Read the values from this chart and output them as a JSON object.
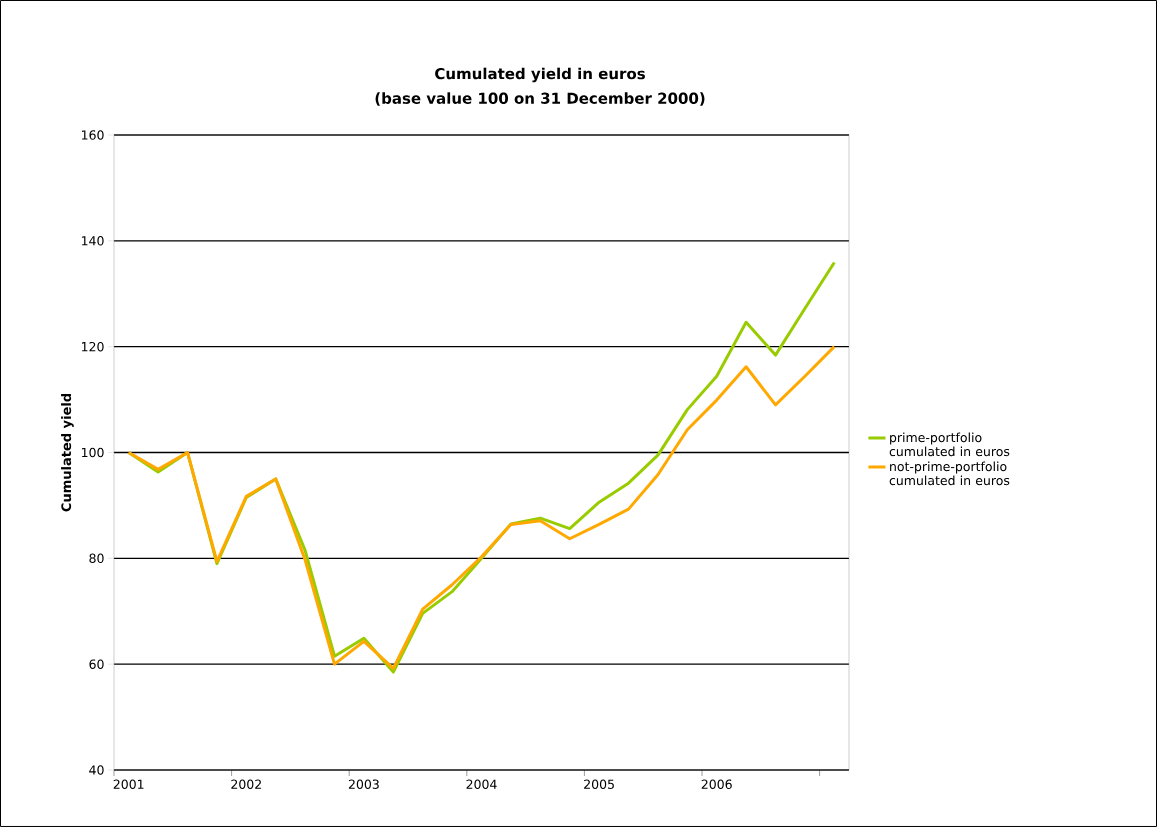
{
  "chart_data": {
    "type": "line",
    "title": "Cumulated yield in euros",
    "subtitle": "(base value 100 on 31 December 2000)",
    "ylabel": "Cumulated yield",
    "categories": [
      "2001",
      null,
      null,
      null,
      "2002",
      null,
      null,
      null,
      "2003",
      null,
      null,
      null,
      "2004",
      null,
      null,
      null,
      "2005",
      null,
      null,
      null,
      "2006",
      null,
      null,
      null,
      null
    ],
    "series": [
      {
        "name": "prime-portfolio cumulated in euros",
        "color": "#99cc00",
        "values": [
          100,
          96.3,
          100,
          79,
          91.5,
          95,
          81.5,
          61.5,
          64.9,
          58.5,
          69.6,
          73.7,
          80,
          86.5,
          87.6,
          85.6,
          90.6,
          94.2,
          99.5,
          108.1,
          114.4,
          124.6,
          118.4,
          127.2,
          135.9
        ]
      },
      {
        "name": "not-prime-portfolio cumulated in euros",
        "color": "#ffa800",
        "values": [
          100,
          96.8,
          100,
          79.4,
          91.7,
          95,
          79.7,
          60,
          64.3,
          59.2,
          70.4,
          75,
          80.3,
          86.4,
          87.1,
          83.7,
          86.4,
          89.3,
          95.8,
          104.3,
          109.9,
          116.2,
          109,
          114.4,
          120
        ]
      }
    ],
    "ylim": [
      40,
      160
    ],
    "yticks": [
      40,
      60,
      80,
      100,
      120,
      140,
      160
    ],
    "grid": "y",
    "legend": "right",
    "marker": "none",
    "line_style": "solid"
  }
}
